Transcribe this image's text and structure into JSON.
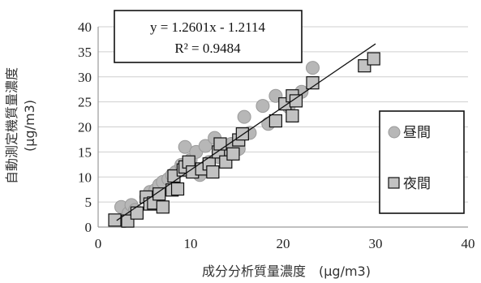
{
  "chart_data": {
    "type": "scatter",
    "xlabel": "成分分析質量濃度　(μg/m3)",
    "ylabel_line1": "自動測定機質量濃度",
    "ylabel_line2": "(μg/m3)",
    "xlim": [
      0,
      40
    ],
    "ylim": [
      0,
      40
    ],
    "x_ticks": [
      "0",
      "10",
      "20",
      "30",
      "40"
    ],
    "y_ticks": [
      "0",
      "5",
      "10",
      "15",
      "20",
      "25",
      "30",
      "35",
      "40"
    ],
    "grid": true,
    "legend_position": "right",
    "trendline": {
      "slope": 1.2601,
      "intercept": -1.2114,
      "x_range": [
        2,
        30
      ],
      "equation": "y = 1.2601x - 1.2114",
      "r2": "R² = 0.9484"
    },
    "series": [
      {
        "name": "昼間",
        "marker": "circle",
        "color": "#b7b7b7",
        "points": [
          [
            2.5,
            4.0
          ],
          [
            2.8,
            1.2
          ],
          [
            3.3,
            2.8
          ],
          [
            3.6,
            4.4
          ],
          [
            4.0,
            3.4
          ],
          [
            5.2,
            6.0
          ],
          [
            5.6,
            7.0
          ],
          [
            6.2,
            7.4
          ],
          [
            6.6,
            8.4
          ],
          [
            7.0,
            9.0
          ],
          [
            7.6,
            9.6
          ],
          [
            8.0,
            10.4
          ],
          [
            8.4,
            11.0
          ],
          [
            9.0,
            12.4
          ],
          [
            9.4,
            16.0
          ],
          [
            10.0,
            13.4
          ],
          [
            10.6,
            15.0
          ],
          [
            11.0,
            10.4
          ],
          [
            11.6,
            16.2
          ],
          [
            12.0,
            13.0
          ],
          [
            12.6,
            17.8
          ],
          [
            13.0,
            14.0
          ],
          [
            13.6,
            15.6
          ],
          [
            14.4,
            16.6
          ],
          [
            15.2,
            15.6
          ],
          [
            15.8,
            22.0
          ],
          [
            16.4,
            18.8
          ],
          [
            17.8,
            24.2
          ],
          [
            18.4,
            20.6
          ],
          [
            19.2,
            26.2
          ],
          [
            20.6,
            24.0
          ],
          [
            22.0,
            27.0
          ],
          [
            23.2,
            31.8
          ]
        ]
      },
      {
        "name": "夜間",
        "marker": "square",
        "color": "#c2c2c2",
        "points": [
          [
            1.8,
            1.4
          ],
          [
            3.2,
            1.2
          ],
          [
            4.2,
            2.8
          ],
          [
            5.2,
            6.0
          ],
          [
            5.6,
            4.6
          ],
          [
            6.0,
            4.8
          ],
          [
            6.6,
            6.6
          ],
          [
            7.0,
            4.0
          ],
          [
            8.0,
            7.4
          ],
          [
            8.6,
            7.6
          ],
          [
            8.2,
            10.2
          ],
          [
            9.2,
            11.4
          ],
          [
            9.4,
            12.0
          ],
          [
            9.8,
            13.0
          ],
          [
            10.2,
            11.0
          ],
          [
            11.2,
            11.6
          ],
          [
            12.0,
            12.6
          ],
          [
            12.4,
            11.0
          ],
          [
            13.0,
            15.0
          ],
          [
            13.2,
            16.6
          ],
          [
            13.8,
            13.0
          ],
          [
            14.6,
            14.6
          ],
          [
            15.2,
            17.4
          ],
          [
            15.6,
            18.6
          ],
          [
            19.2,
            21.2
          ],
          [
            20.2,
            24.6
          ],
          [
            21.0,
            26.2
          ],
          [
            21.0,
            22.2
          ],
          [
            21.4,
            25.2
          ],
          [
            23.2,
            28.8
          ],
          [
            28.8,
            32.2
          ],
          [
            29.8,
            33.6
          ]
        ]
      }
    ]
  }
}
